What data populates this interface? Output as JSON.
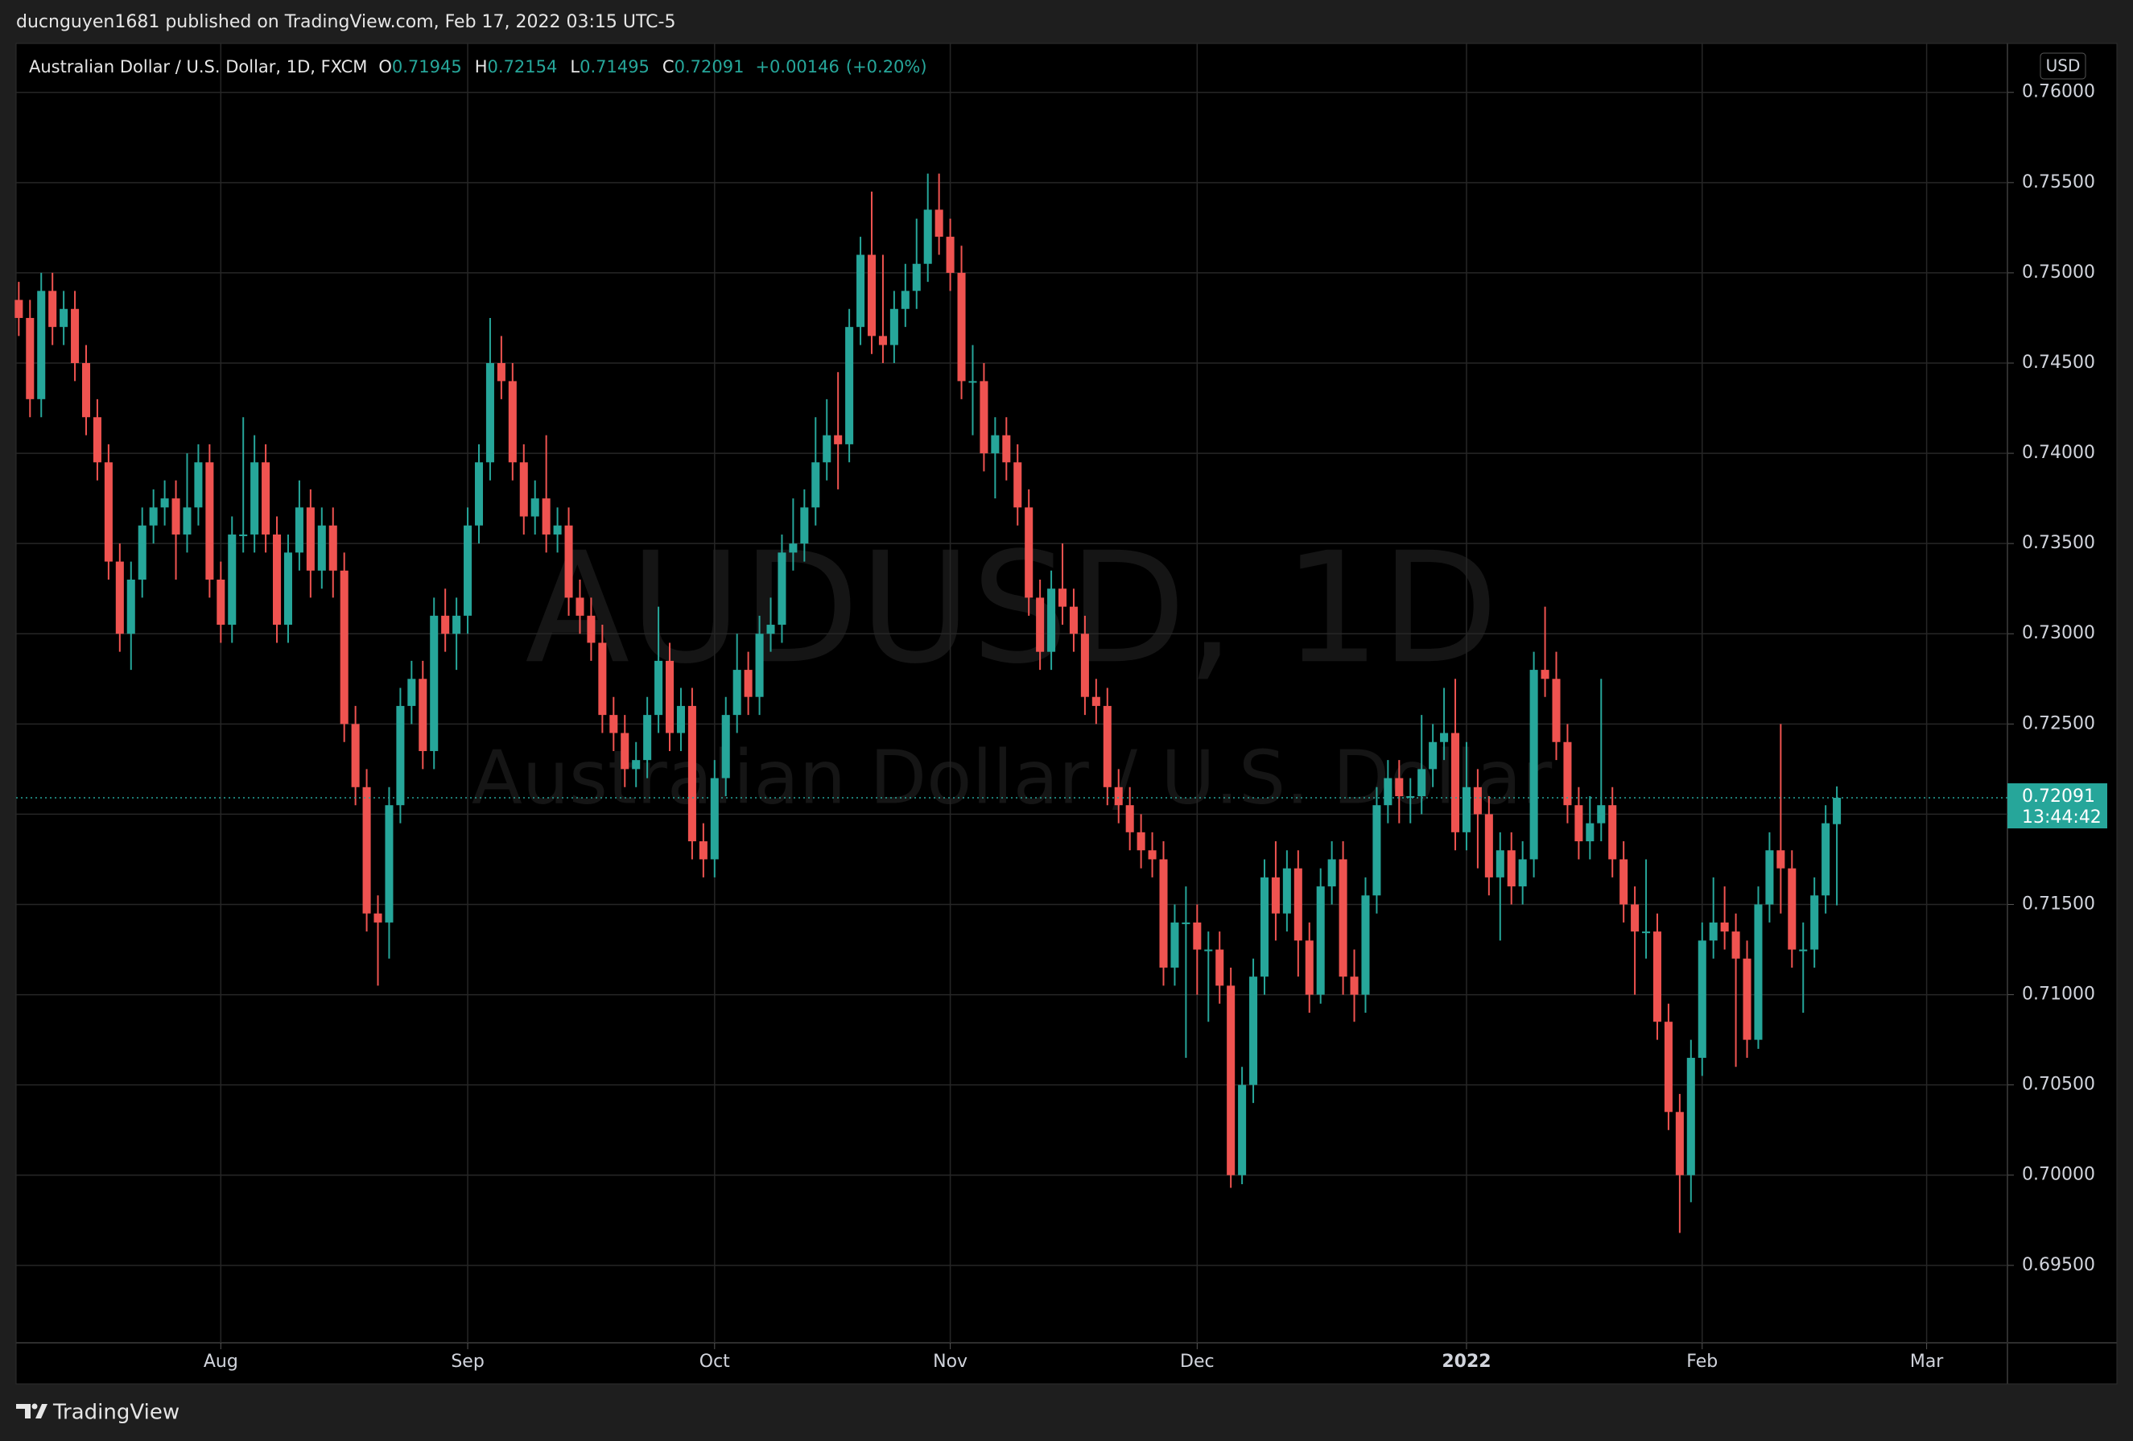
{
  "header": {
    "published": "ducnguyen1681 published on TradingView.com, Feb 17, 2022 03:15 UTC-5"
  },
  "footer": {
    "brand": "TradingView"
  },
  "chart_data": {
    "type": "candlestick",
    "title": "Australian Dollar / U.S. Dollar, 1D, FXCM",
    "watermark": "AUDUSD, 1D",
    "watermark_sub": "Australian Dollar / U.S. Dollar",
    "currency": "USD",
    "legend": {
      "labels": [
        "O",
        "H",
        "L",
        "C"
      ],
      "values": [
        0.71945,
        0.72154,
        0.71495,
        0.72091
      ],
      "change": "+0.00146",
      "change_pct": "(+0.20%)"
    },
    "last_price": {
      "value": 0.72091,
      "countdown": "13:44:42"
    },
    "up_color": "#26a69a",
    "down_color": "#ef5350",
    "grid": true,
    "xlim": [
      -0.24,
      177.2
    ],
    "xticks": [
      {
        "value": 18,
        "label": "Aug"
      },
      {
        "value": 40,
        "label": "Sep"
      },
      {
        "value": 62,
        "label": "Oct"
      },
      {
        "value": 83,
        "label": "Nov"
      },
      {
        "value": 105,
        "label": "Dec"
      },
      {
        "value": 129,
        "label": "2022",
        "bold": true
      },
      {
        "value": 150,
        "label": "Feb"
      },
      {
        "value": 170,
        "label": "Mar"
      }
    ],
    "ylim": [
      0.69071,
      0.76271
    ],
    "yticks": [
      {
        "value": 0.695,
        "label": "0.69500"
      },
      {
        "value": 0.7,
        "label": "0.70000"
      },
      {
        "value": 0.705,
        "label": "0.70500"
      },
      {
        "value": 0.71,
        "label": "0.71000"
      },
      {
        "value": 0.715,
        "label": "0.71500"
      },
      {
        "value": 0.72,
        "label": "0.72000"
      },
      {
        "value": 0.725,
        "label": "0.72500"
      },
      {
        "value": 0.73,
        "label": "0.73000"
      },
      {
        "value": 0.735,
        "label": "0.73500"
      },
      {
        "value": 0.74,
        "label": "0.74000"
      },
      {
        "value": 0.745,
        "label": "0.74500"
      },
      {
        "value": 0.75,
        "label": "0.75000"
      },
      {
        "value": 0.755,
        "label": "0.75500"
      },
      {
        "value": 0.76,
        "label": "0.76000"
      }
    ],
    "open": [
      0.7485,
      0.7475,
      0.743,
      0.749,
      0.747,
      0.748,
      0.745,
      0.742,
      0.7395,
      0.734,
      0.73,
      0.733,
      0.736,
      0.737,
      0.7375,
      0.7355,
      0.737,
      0.7395,
      0.733,
      0.7305,
      0.7355,
      0.7355,
      0.7395,
      0.7355,
      0.7305,
      0.7345,
      0.737,
      0.7335,
      0.736,
      0.7335,
      0.725,
      0.7215,
      0.7145,
      0.714,
      0.7205,
      0.726,
      0.7275,
      0.7235,
      0.731,
      0.73,
      0.731,
      0.736,
      0.7395,
      0.745,
      0.744,
      0.7395,
      0.7365,
      0.7375,
      0.7355,
      0.736,
      0.732,
      0.731,
      0.7295,
      0.7255,
      0.7245,
      0.7225,
      0.723,
      0.7255,
      0.7285,
      0.7245,
      0.726,
      0.7185,
      0.7175,
      0.722,
      0.7255,
      0.728,
      0.7265,
      0.73,
      0.7305,
      0.7345,
      0.735,
      0.737,
      0.7395,
      0.741,
      0.7405,
      0.747,
      0.751,
      0.7465,
      0.746,
      0.748,
      0.749,
      0.7505,
      0.7535,
      0.752,
      0.75,
      0.744,
      0.744,
      0.74,
      0.741,
      0.7395,
      0.737,
      0.732,
      0.729,
      0.7325,
      0.7315,
      0.73,
      0.7265,
      0.726,
      0.7215,
      0.7205,
      0.719,
      0.718,
      0.7175,
      0.7115,
      0.714,
      0.714,
      0.7125,
      0.7125,
      0.7105,
      0.7,
      0.705,
      0.711,
      0.7165,
      0.7145,
      0.717,
      0.713,
      0.71,
      0.716,
      0.7175,
      0.711,
      0.71,
      0.7155,
      0.7205,
      0.722,
      0.721,
      0.721,
      0.7225,
      0.724,
      0.7245,
      0.719,
      0.7215,
      0.72,
      0.7165,
      0.718,
      0.716,
      0.7175,
      0.728,
      0.7275,
      0.724,
      0.7205,
      0.7185,
      0.7195,
      0.7205,
      0.7175,
      0.715,
      0.7135,
      0.7135,
      0.7085,
      0.7035,
      0.7,
      0.7065,
      0.713,
      0.714,
      0.7135,
      0.712,
      0.7075,
      0.715,
      0.718,
      0.717,
      0.7125,
      0.7125,
      0.7155,
      0.71945
    ],
    "high": [
      0.7495,
      0.7485,
      0.75,
      0.75,
      0.749,
      0.749,
      0.746,
      0.743,
      0.7405,
      0.735,
      0.734,
      0.737,
      0.738,
      0.7385,
      0.7385,
      0.74,
      0.7405,
      0.7405,
      0.734,
      0.7365,
      0.742,
      0.741,
      0.7405,
      0.7365,
      0.7355,
      0.7385,
      0.738,
      0.737,
      0.737,
      0.7345,
      0.726,
      0.7225,
      0.7155,
      0.7215,
      0.727,
      0.7285,
      0.7285,
      0.732,
      0.7325,
      0.732,
      0.737,
      0.7405,
      0.7475,
      0.7465,
      0.745,
      0.7405,
      0.7385,
      0.741,
      0.737,
      0.737,
      0.733,
      0.732,
      0.7305,
      0.7265,
      0.7255,
      0.724,
      0.7265,
      0.7315,
      0.7295,
      0.727,
      0.727,
      0.7195,
      0.723,
      0.7265,
      0.73,
      0.729,
      0.731,
      0.732,
      0.7355,
      0.7375,
      0.738,
      0.742,
      0.743,
      0.7445,
      0.748,
      0.752,
      0.7545,
      0.751,
      0.749,
      0.7505,
      0.753,
      0.7555,
      0.7555,
      0.753,
      0.7515,
      0.746,
      0.745,
      0.742,
      0.742,
      0.7405,
      0.738,
      0.733,
      0.7335,
      0.735,
      0.7325,
      0.731,
      0.7275,
      0.727,
      0.7225,
      0.7215,
      0.72,
      0.719,
      0.7185,
      0.715,
      0.716,
      0.715,
      0.7135,
      0.7135,
      0.7115,
      0.706,
      0.712,
      0.7175,
      0.7185,
      0.718,
      0.718,
      0.714,
      0.717,
      0.7185,
      0.7185,
      0.7125,
      0.7165,
      0.7215,
      0.723,
      0.723,
      0.722,
      0.7255,
      0.725,
      0.727,
      0.7275,
      0.724,
      0.7225,
      0.721,
      0.719,
      0.719,
      0.7185,
      0.729,
      0.7315,
      0.729,
      0.725,
      0.7215,
      0.721,
      0.7275,
      0.7215,
      0.7185,
      0.716,
      0.7175,
      0.7145,
      0.7095,
      0.7045,
      0.7075,
      0.714,
      0.7165,
      0.716,
      0.7145,
      0.713,
      0.716,
      0.719,
      0.725,
      0.718,
      0.714,
      0.7165,
      0.7205,
      0.72154
    ],
    "low": [
      0.7465,
      0.742,
      0.742,
      0.746,
      0.746,
      0.744,
      0.741,
      0.7385,
      0.733,
      0.729,
      0.728,
      0.732,
      0.735,
      0.736,
      0.733,
      0.7345,
      0.736,
      0.732,
      0.7295,
      0.7295,
      0.7345,
      0.7345,
      0.7345,
      0.7295,
      0.7295,
      0.7335,
      0.732,
      0.7325,
      0.732,
      0.724,
      0.7205,
      0.7135,
      0.7105,
      0.712,
      0.7195,
      0.725,
      0.7225,
      0.7225,
      0.729,
      0.728,
      0.73,
      0.735,
      0.7385,
      0.743,
      0.7385,
      0.7355,
      0.7355,
      0.7345,
      0.7345,
      0.731,
      0.73,
      0.7285,
      0.7245,
      0.7235,
      0.7215,
      0.7215,
      0.722,
      0.7245,
      0.7235,
      0.7235,
      0.7175,
      0.7165,
      0.7165,
      0.721,
      0.7245,
      0.7255,
      0.7255,
      0.729,
      0.7295,
      0.7335,
      0.734,
      0.736,
      0.7385,
      0.738,
      0.7395,
      0.746,
      0.7455,
      0.745,
      0.745,
      0.747,
      0.748,
      0.7495,
      0.751,
      0.749,
      0.743,
      0.741,
      0.739,
      0.7375,
      0.7385,
      0.736,
      0.731,
      0.728,
      0.728,
      0.7305,
      0.729,
      0.7255,
      0.725,
      0.7205,
      0.7195,
      0.718,
      0.717,
      0.7165,
      0.7105,
      0.7105,
      0.7065,
      0.71,
      0.7085,
      0.7095,
      0.6993,
      0.6995,
      0.704,
      0.71,
      0.713,
      0.7135,
      0.711,
      0.709,
      0.7095,
      0.715,
      0.71,
      0.7085,
      0.709,
      0.7145,
      0.7195,
      0.7195,
      0.7195,
      0.72,
      0.7215,
      0.723,
      0.718,
      0.718,
      0.717,
      0.7155,
      0.713,
      0.715,
      0.715,
      0.7165,
      0.7265,
      0.723,
      0.7195,
      0.7175,
      0.7175,
      0.7185,
      0.7165,
      0.714,
      0.71,
      0.712,
      0.7075,
      0.7025,
      0.6968,
      0.6985,
      0.7055,
      0.712,
      0.7125,
      0.706,
      0.7065,
      0.707,
      0.714,
      0.7145,
      0.7115,
      0.709,
      0.7115,
      0.7145,
      0.71495
    ],
    "close": [
      0.7475,
      0.743,
      0.749,
      0.747,
      0.748,
      0.745,
      0.742,
      0.7395,
      0.734,
      0.73,
      0.733,
      0.736,
      0.737,
      0.7375,
      0.7355,
      0.737,
      0.7395,
      0.733,
      0.7305,
      0.7355,
      0.7355,
      0.7395,
      0.7355,
      0.7305,
      0.7345,
      0.737,
      0.7335,
      0.736,
      0.7335,
      0.725,
      0.7215,
      0.7145,
      0.714,
      0.7205,
      0.726,
      0.7275,
      0.7235,
      0.731,
      0.73,
      0.731,
      0.736,
      0.7395,
      0.745,
      0.744,
      0.7395,
      0.7365,
      0.7375,
      0.7355,
      0.736,
      0.732,
      0.731,
      0.7295,
      0.7255,
      0.7245,
      0.7225,
      0.723,
      0.7255,
      0.7285,
      0.7245,
      0.726,
      0.7185,
      0.7175,
      0.722,
      0.7255,
      0.728,
      0.7265,
      0.73,
      0.7305,
      0.7345,
      0.735,
      0.737,
      0.7395,
      0.741,
      0.7405,
      0.747,
      0.751,
      0.7465,
      0.746,
      0.748,
      0.749,
      0.7505,
      0.7535,
      0.752,
      0.75,
      0.744,
      0.744,
      0.74,
      0.741,
      0.7395,
      0.737,
      0.732,
      0.729,
      0.7325,
      0.7315,
      0.73,
      0.7265,
      0.726,
      0.7215,
      0.7205,
      0.719,
      0.718,
      0.7175,
      0.7115,
      0.714,
      0.714,
      0.7125,
      0.7125,
      0.7105,
      0.7,
      0.705,
      0.711,
      0.7165,
      0.7145,
      0.717,
      0.713,
      0.71,
      0.716,
      0.7175,
      0.711,
      0.71,
      0.7155,
      0.7205,
      0.722,
      0.721,
      0.721,
      0.7225,
      0.724,
      0.7245,
      0.719,
      0.7215,
      0.72,
      0.7165,
      0.718,
      0.716,
      0.7175,
      0.728,
      0.7275,
      0.724,
      0.7205,
      0.7185,
      0.7195,
      0.7205,
      0.7175,
      0.715,
      0.7135,
      0.7135,
      0.7085,
      0.7035,
      0.7,
      0.7065,
      0.713,
      0.714,
      0.7135,
      0.712,
      0.7075,
      0.715,
      0.718,
      0.717,
      0.7125,
      0.7125,
      0.7155,
      0.7195,
      0.72091
    ]
  }
}
